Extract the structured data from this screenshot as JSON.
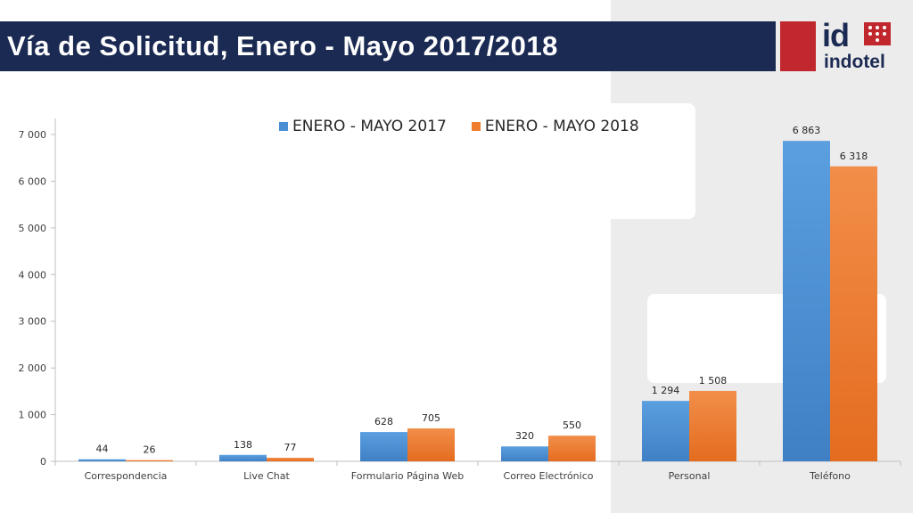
{
  "header": {
    "title": "Vía de Solicitud, Enero - Mayo 2017/2018",
    "logo_mark": "id",
    "logo_word": "indotel"
  },
  "colors": {
    "title_bar": "#1b2a52",
    "logo_red": "#c0282d",
    "series_2017": "#4a8fd3",
    "series_2018": "#ef7d2f"
  },
  "chart_data": {
    "type": "bar",
    "title": "",
    "xlabel": "",
    "ylabel": "",
    "ylim": [
      0,
      7000
    ],
    "y_ticks": [
      0,
      1000,
      2000,
      3000,
      4000,
      5000,
      6000,
      7000
    ],
    "y_tick_labels": [
      "0",
      "1 000",
      "2 000",
      "3 000",
      "4 000",
      "5 000",
      "6 000",
      "7 000"
    ],
    "grid": false,
    "legend_position": "top",
    "categories": [
      "Correspondencia",
      "Live Chat",
      "Formulario Página Web",
      "Correo Electrónico",
      "Personal",
      "Teléfono"
    ],
    "series": [
      {
        "name": "ENERO - MAYO 2017",
        "color": "#4a8fd3",
        "values": [
          44,
          138,
          628,
          320,
          1294,
          6863
        ],
        "value_labels": [
          "44",
          "138",
          "628",
          "320",
          "1 294",
          "6 863"
        ]
      },
      {
        "name": "ENERO - MAYO 2018",
        "color": "#ef7d2f",
        "values": [
          26,
          77,
          705,
          550,
          1508,
          6318
        ],
        "value_labels": [
          "26",
          "77",
          "705",
          "550",
          "1 508",
          "6 318"
        ]
      }
    ]
  }
}
